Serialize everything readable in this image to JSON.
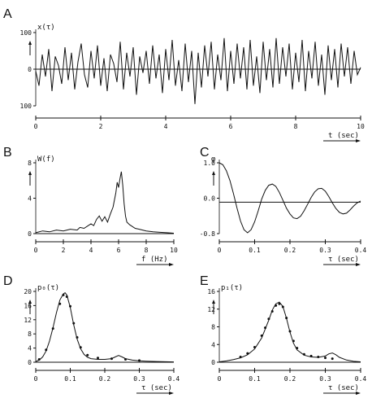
{
  "chart_data": [
    {
      "id": "A",
      "type": "line",
      "panel_label": "A",
      "ylabel": "x(τ)",
      "xlabel": "t (sec)",
      "xlim": [
        0,
        10
      ],
      "ylim": [
        -100,
        100
      ],
      "x_ticks": [
        "0",
        "2",
        "4",
        "6",
        "8",
        "10"
      ],
      "y_ticks": [
        "100",
        "0",
        "100"
      ],
      "series": [
        {
          "x": [
            0,
            0.1,
            0.2,
            0.3,
            0.4,
            0.5,
            0.6,
            0.7,
            0.8,
            0.9,
            1.0,
            1.1,
            1.2,
            1.3,
            1.4,
            1.5,
            1.6,
            1.7,
            1.8,
            1.9,
            2.0,
            2.1,
            2.2,
            2.3,
            2.4,
            2.5,
            2.6,
            2.7,
            2.8,
            2.9,
            3.0,
            3.1,
            3.2,
            3.3,
            3.4,
            3.5,
            3.6,
            3.7,
            3.8,
            3.9,
            4.0,
            4.1,
            4.2,
            4.3,
            4.4,
            4.5,
            4.6,
            4.7,
            4.8,
            4.9,
            5.0,
            5.1,
            5.2,
            5.3,
            5.4,
            5.5,
            5.6,
            5.7,
            5.8,
            5.9,
            6.0,
            6.1,
            6.2,
            6.3,
            6.4,
            6.5,
            6.6,
            6.7,
            6.8,
            6.9,
            7.0,
            7.1,
            7.2,
            7.3,
            7.4,
            7.5,
            7.6,
            7.7,
            7.8,
            7.9,
            8.0,
            8.1,
            8.2,
            8.3,
            8.4,
            8.5,
            8.6,
            8.7,
            8.8,
            8.9,
            9.0,
            9.1,
            9.2,
            9.3,
            9.4,
            9.5,
            9.6,
            9.7,
            9.8,
            9.9,
            10.0
          ],
          "y": [
            -5,
            -45,
            40,
            -20,
            55,
            -60,
            35,
            10,
            -40,
            60,
            -30,
            45,
            -55,
            20,
            70,
            -15,
            -50,
            50,
            -25,
            65,
            -45,
            30,
            -60,
            40,
            15,
            -35,
            75,
            -55,
            45,
            -20,
            60,
            -70,
            35,
            -10,
            50,
            -40,
            65,
            -25,
            40,
            -65,
            55,
            -30,
            80,
            -45,
            25,
            -60,
            70,
            -35,
            50,
            -95,
            45,
            -50,
            65,
            -20,
            75,
            -55,
            40,
            -30,
            85,
            -60,
            50,
            -40,
            70,
            -25,
            60,
            -55,
            80,
            -45,
            35,
            -65,
            75,
            -30,
            55,
            -50,
            85,
            -40,
            60,
            -20,
            70,
            -55,
            45,
            -35,
            80,
            -60,
            50,
            -25,
            75,
            -45,
            40,
            -70,
            65,
            -30,
            55,
            -50,
            70,
            -20,
            60,
            -40,
            50,
            -15,
            5
          ]
        }
      ]
    },
    {
      "id": "B",
      "type": "line",
      "panel_label": "B",
      "ylabel": "W(f)",
      "xlabel": "f (Hz)",
      "xlim": [
        0,
        10
      ],
      "ylim": [
        0,
        8
      ],
      "x_ticks": [
        "0",
        "2",
        "4",
        "6",
        "8",
        "10"
      ],
      "y_ticks": [
        "8",
        "4",
        "0"
      ],
      "series": [
        {
          "x": [
            0,
            0.5,
            1.0,
            1.5,
            2.0,
            2.5,
            3.0,
            3.2,
            3.5,
            3.8,
            4.0,
            4.2,
            4.4,
            4.6,
            4.8,
            5.0,
            5.2,
            5.4,
            5.6,
            5.8,
            5.9,
            6.0,
            6.1,
            6.2,
            6.3,
            6.4,
            6.5,
            6.6,
            6.8,
            7.0,
            7.2,
            7.5,
            8.0,
            8.5,
            9.0,
            9.5,
            10.0
          ],
          "y": [
            0.1,
            0.3,
            0.2,
            0.4,
            0.3,
            0.5,
            0.4,
            0.7,
            0.6,
            0.9,
            1.1,
            0.9,
            1.6,
            2.0,
            1.4,
            1.9,
            1.3,
            2.2,
            3.0,
            4.6,
            5.8,
            5.2,
            6.2,
            7.0,
            5.5,
            3.4,
            2.0,
            1.3,
            1.0,
            0.8,
            0.6,
            0.5,
            0.3,
            0.2,
            0.15,
            0.1,
            0.05
          ]
        }
      ]
    },
    {
      "id": "C",
      "type": "line",
      "panel_label": "C",
      "ylabel": "φ",
      "xlabel": "τ (sec)",
      "xlim": [
        0,
        0.4
      ],
      "ylim": [
        -0.8,
        1.0
      ],
      "x_ticks": [
        "0",
        "0.1",
        "0.2",
        "0.3",
        "0.4"
      ],
      "y_ticks": [
        "1.0",
        "0.0",
        "-0.8"
      ],
      "series": [
        {
          "x": [
            0,
            0.01,
            0.02,
            0.03,
            0.04,
            0.05,
            0.06,
            0.07,
            0.08,
            0.09,
            0.1,
            0.11,
            0.12,
            0.13,
            0.14,
            0.15,
            0.16,
            0.17,
            0.18,
            0.19,
            0.2,
            0.21,
            0.22,
            0.23,
            0.24,
            0.25,
            0.26,
            0.27,
            0.28,
            0.29,
            0.3,
            0.31,
            0.32,
            0.33,
            0.34,
            0.35,
            0.36,
            0.37,
            0.38,
            0.39,
            0.4
          ],
          "y": [
            1.0,
            0.95,
            0.8,
            0.55,
            0.22,
            -0.15,
            -0.48,
            -0.7,
            -0.78,
            -0.7,
            -0.5,
            -0.22,
            0.08,
            0.3,
            0.43,
            0.46,
            0.4,
            0.25,
            0.05,
            -0.15,
            -0.3,
            -0.4,
            -0.42,
            -0.36,
            -0.22,
            -0.05,
            0.12,
            0.26,
            0.34,
            0.35,
            0.28,
            0.14,
            -0.02,
            -0.16,
            -0.26,
            -0.3,
            -0.28,
            -0.2,
            -0.1,
            -0.02,
            0.03
          ]
        }
      ]
    },
    {
      "id": "D",
      "type": "line",
      "panel_label": "D",
      "ylabel": "p₀(τ)",
      "xlabel": "τ (sec)",
      "xlim": [
        0,
        0.4
      ],
      "ylim": [
        0,
        20
      ],
      "x_ticks": [
        "0",
        "0.1",
        "0.2",
        "0.3",
        "0.4"
      ],
      "y_ticks": [
        "20",
        "16",
        "12",
        "8",
        "4",
        "0"
      ],
      "series": [
        {
          "x": [
            0,
            0.01,
            0.02,
            0.03,
            0.04,
            0.05,
            0.06,
            0.07,
            0.08,
            0.085,
            0.09,
            0.1,
            0.11,
            0.12,
            0.13,
            0.14,
            0.15,
            0.16,
            0.18,
            0.2,
            0.22,
            0.23,
            0.24,
            0.25,
            0.26,
            0.28,
            0.3,
            0.32,
            0.35,
            0.4
          ],
          "y": [
            0.2,
            0.6,
            1.5,
            3.2,
            6.0,
            9.8,
            14.0,
            17.6,
            19.3,
            19.6,
            19.0,
            15.5,
            10.5,
            6.5,
            3.8,
            2.2,
            1.4,
            1.0,
            0.8,
            0.8,
            1.0,
            1.5,
            1.9,
            1.5,
            1.0,
            0.6,
            0.4,
            0.3,
            0.2,
            0.1
          ]
        },
        {
          "x": [
            0.01,
            0.03,
            0.05,
            0.07,
            0.08,
            0.09,
            0.1,
            0.11,
            0.12,
            0.13,
            0.15,
            0.18,
            0.22,
            0.26,
            0.3
          ],
          "y": [
            0.8,
            3.5,
            9.5,
            16.5,
            19.0,
            18.5,
            15.8,
            11.0,
            7.0,
            4.2,
            2.0,
            1.2,
            1.0,
            0.8,
            0.5
          ]
        }
      ]
    },
    {
      "id": "E",
      "type": "line",
      "panel_label": "E",
      "ylabel": "p₁(τ)",
      "xlabel": "τ (sec)",
      "xlim": [
        0,
        0.4
      ],
      "ylim": [
        0,
        16
      ],
      "x_ticks": [
        "0",
        "0.1",
        "0.2",
        "0.3",
        "0.4"
      ],
      "y_ticks": [
        "16",
        "12",
        "8",
        "4",
        "0"
      ],
      "series": [
        {
          "x": [
            0,
            0.02,
            0.04,
            0.06,
            0.08,
            0.1,
            0.12,
            0.14,
            0.15,
            0.16,
            0.17,
            0.18,
            0.19,
            0.2,
            0.21,
            0.22,
            0.24,
            0.26,
            0.28,
            0.3,
            0.31,
            0.32,
            0.33,
            0.34,
            0.36,
            0.38,
            0.4
          ],
          "y": [
            0.1,
            0.3,
            0.6,
            1.0,
            1.7,
            3.0,
            5.5,
            9.5,
            11.8,
            13.2,
            13.6,
            12.6,
            10.0,
            6.8,
            4.3,
            2.8,
            1.6,
            1.2,
            1.1,
            1.4,
            1.9,
            2.1,
            1.7,
            1.1,
            0.5,
            0.2,
            0.1
          ]
        },
        {
          "x": [
            0.06,
            0.08,
            0.1,
            0.12,
            0.13,
            0.14,
            0.15,
            0.16,
            0.17,
            0.18,
            0.19,
            0.2,
            0.21,
            0.22,
            0.24,
            0.26,
            0.28,
            0.3,
            0.32
          ],
          "y": [
            1.2,
            2.0,
            3.4,
            6.0,
            7.8,
            9.8,
            11.5,
            12.8,
            13.2,
            12.5,
            10.0,
            7.0,
            4.8,
            3.2,
            1.8,
            1.4,
            1.2,
            1.0,
            0.8
          ]
        }
      ]
    }
  ]
}
